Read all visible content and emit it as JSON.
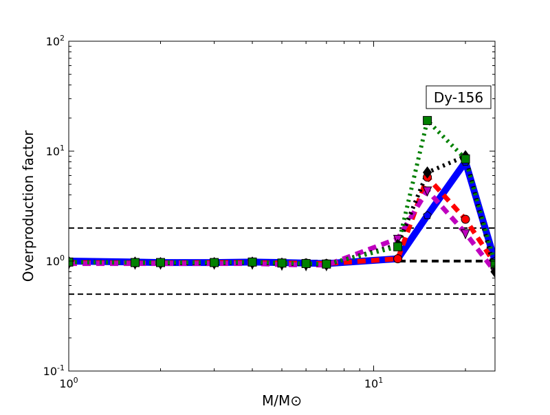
{
  "chart_data": {
    "type": "line",
    "annotation": "Dy-156",
    "xlabel": "M/M⊙",
    "ylabel": "Overproduction factor",
    "xscale": "log",
    "yscale": "log",
    "xlim": [
      1,
      25
    ],
    "ylim": [
      0.1,
      100
    ],
    "x_ticks": [
      {
        "value": 1,
        "base": "10",
        "exp": "0"
      },
      {
        "value": 10,
        "base": "10",
        "exp": "1"
      }
    ],
    "y_ticks": [
      {
        "value": 0.1,
        "base": "10",
        "exp": "-1"
      },
      {
        "value": 1,
        "base": "10",
        "exp": "0"
      },
      {
        "value": 10,
        "base": "10",
        "exp": "1"
      },
      {
        "value": 100,
        "base": "10",
        "exp": "2"
      }
    ],
    "reference_lines": [
      2,
      1,
      0.5
    ],
    "grid": false,
    "x": [
      1,
      1.65,
      2,
      3,
      4,
      5,
      6,
      7,
      12,
      15,
      20,
      25
    ],
    "series": [
      {
        "color": "#0000ff",
        "style": "solid",
        "marker": "pentagon",
        "values": [
          1.0,
          0.98,
          0.97,
          0.97,
          0.98,
          0.97,
          0.96,
          0.95,
          1.05,
          2.6,
          8.0,
          1.0
        ]
      },
      {
        "color": "#ff0000",
        "style": "dashed",
        "marker": "circle",
        "values": [
          0.97,
          0.96,
          0.96,
          0.97,
          0.97,
          0.96,
          0.96,
          0.95,
          1.05,
          5.8,
          2.4,
          0.95
        ]
      },
      {
        "color": "#bf00bf",
        "style": "dashed",
        "marker": "triangle-down",
        "values": [
          0.95,
          0.95,
          0.95,
          0.95,
          0.95,
          0.93,
          0.92,
          0.92,
          1.6,
          4.4,
          1.8,
          0.8
        ]
      },
      {
        "color": "#000000",
        "style": "dotted",
        "marker": "diamond",
        "values": [
          0.98,
          0.97,
          0.96,
          0.96,
          0.97,
          0.95,
          0.94,
          0.93,
          1.4,
          6.4,
          9.0,
          0.8
        ]
      },
      {
        "color": "#008000",
        "style": "dotted",
        "marker": "square",
        "values": [
          0.98,
          0.97,
          0.97,
          0.97,
          0.98,
          0.96,
          0.95,
          0.94,
          1.35,
          19,
          8.5,
          0.95
        ]
      }
    ]
  }
}
